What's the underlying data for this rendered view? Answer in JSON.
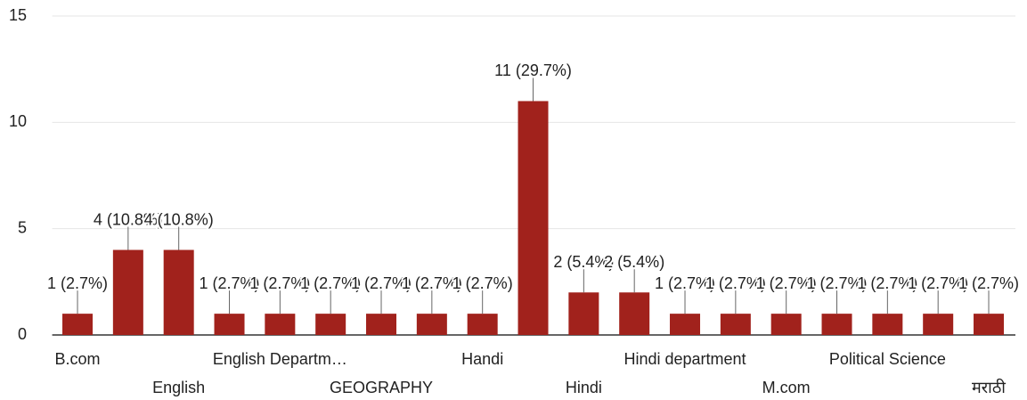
{
  "chart_data": {
    "type": "bar",
    "categories": [
      "B.com",
      null,
      "English",
      null,
      "English Departm…",
      null,
      "GEOGRAPHY",
      null,
      "Handi",
      null,
      "Hindi",
      null,
      "Hindi department",
      null,
      "M.com",
      null,
      "Political Science",
      null,
      "मराठी"
    ],
    "values": [
      1,
      4,
      4,
      1,
      1,
      1,
      1,
      1,
      1,
      11,
      2,
      2,
      1,
      1,
      1,
      1,
      1,
      1,
      1
    ],
    "value_labels": [
      "1 (2.7%)",
      "4 (10.8%)",
      "4 (10.8%)",
      "1 (2.7%)",
      "1 (2.7%)",
      "1 (2.7%)",
      "1 (2.7%)",
      "1 (2.7%)",
      "1 (2.7%)",
      "11 (29.7%)",
      "2 (5.4%)",
      "2 (5.4%)",
      "1 (2.7%)",
      "1 (2.7%)",
      "1 (2.7%)",
      "1 (2.7%)",
      "1 (2.7%)",
      "1 (2.7%)",
      "1 (2.7%)"
    ],
    "color": "#a1221c",
    "ylim": [
      0,
      15
    ],
    "yticks": [
      0,
      5,
      10,
      15
    ],
    "grid": true
  }
}
